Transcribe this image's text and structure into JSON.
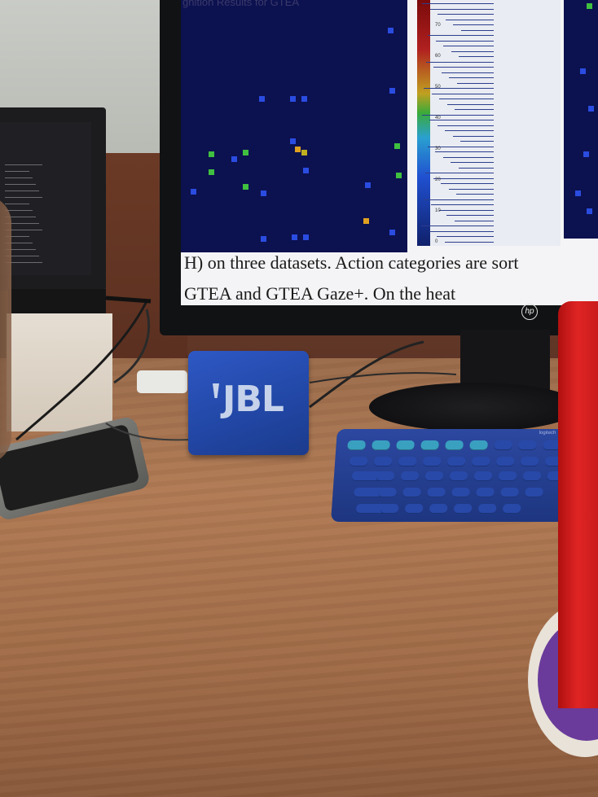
{
  "scene": {
    "description_objects": [
      "monitor",
      "speaker",
      "keyboard",
      "phone",
      "cup"
    ],
    "colors": {
      "desk": "#a06b47",
      "speaker": "#2146a4",
      "keyboard": "#1e3680",
      "cup": "#e02424",
      "heatmap_bg": "#0c1150"
    }
  },
  "monitor": {
    "screen_title": "gnition Results for GTEA",
    "caption_line1": "H) on three datasets.  Action categories are sort",
    "caption_line2": "GTEA    and GTEA Gaze+. On the heat ",
    "brand_logo": "hp",
    "colorbar_ticks": [
      "70",
      "60",
      "50",
      "40",
      "30",
      "20",
      "10",
      "0"
    ]
  },
  "speaker": {
    "brand": "JBL"
  },
  "keyboard": {
    "brand": "logitech"
  },
  "icons": {
    "hp_logo": "hp-logo-icon",
    "jbl_logo": "jbl-logo-icon"
  }
}
